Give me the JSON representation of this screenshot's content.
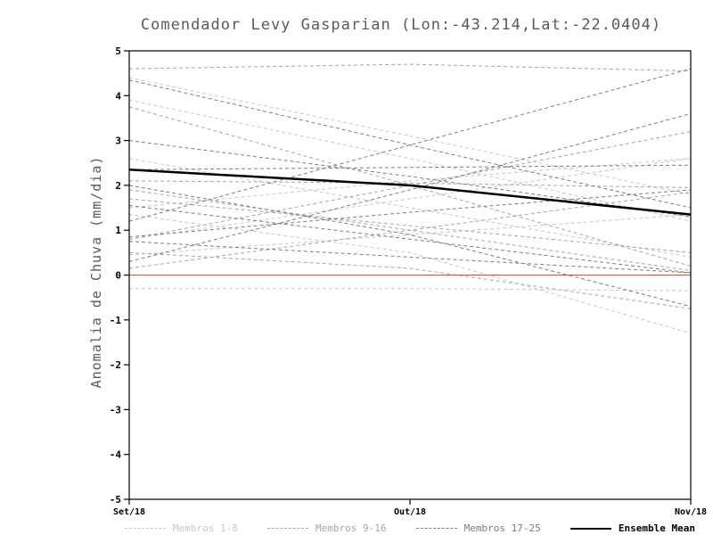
{
  "chart_data": {
    "type": "line",
    "title": "Comendador Levy Gasparian (Lon:-43.214,Lat:-22.0404)",
    "ylabel": "Anomalia de Chuva (mm/dia)",
    "x_categories": [
      "Set/18",
      "Out/18",
      "Nov/18"
    ],
    "ylim": [
      -5,
      5
    ],
    "yticks": [
      -5,
      -4,
      -3,
      -2,
      -1,
      0,
      1,
      2,
      3,
      4,
      5
    ],
    "grid": false,
    "zero_line": {
      "value": 0,
      "color": "#e04b3c"
    },
    "line_style": {
      "member_dash": "4,3",
      "member_width": 1,
      "mean_width": 2.5
    },
    "groups": [
      {
        "name": "Membros 1-8",
        "color": "#c9c9c9",
        "series": [
          [
            3.9,
            2.6,
            1.2
          ],
          [
            1.5,
            2.1,
            2.6
          ],
          [
            0.8,
            1.7,
            2.6
          ],
          [
            4.4,
            3.1,
            1.8
          ],
          [
            0.45,
            0.9,
            1.35
          ],
          [
            -0.3,
            -0.3,
            -0.35
          ],
          [
            2.6,
            1.5,
            0.4
          ],
          [
            1.35,
            0.5,
            -1.3
          ]
        ]
      },
      {
        "name": "Membros 9-16",
        "color": "#a6a6a6",
        "series": [
          [
            4.6,
            4.7,
            4.55
          ],
          [
            3.75,
            2.0,
            0.2
          ],
          [
            0.8,
            2.0,
            3.2
          ],
          [
            2.1,
            2.05,
            1.95
          ],
          [
            1.7,
            1.1,
            0.5
          ],
          [
            0.15,
            1.0,
            1.85
          ],
          [
            1.9,
            1.0,
            0.1
          ],
          [
            0.5,
            0.15,
            -0.75
          ]
        ]
      },
      {
        "name": "Membros 17-25",
        "color": "#7d7d7d",
        "series": [
          [
            3.0,
            2.2,
            1.3
          ],
          [
            0.3,
            1.9,
            3.6
          ],
          [
            2.35,
            2.4,
            2.45
          ],
          [
            1.55,
            0.8,
            0.05
          ],
          [
            0.75,
            0.4,
            0.05
          ],
          [
            4.35,
            2.9,
            1.5
          ],
          [
            0.85,
            1.4,
            1.9
          ],
          [
            2.0,
            0.9,
            -0.7
          ],
          [
            1.2,
            2.9,
            4.6
          ]
        ]
      }
    ],
    "ensemble_mean": {
      "name": "Ensemble Mean",
      "color": "#000000",
      "values": [
        2.35,
        2.0,
        1.35
      ]
    },
    "legend": [
      {
        "label": "Membros 1-8",
        "style": "dashed",
        "color": "#c9c9c9"
      },
      {
        "label": "Membros 9-16",
        "style": "dashed",
        "color": "#a6a6a6"
      },
      {
        "label": "Membros 17-25",
        "style": "dashed",
        "color": "#7d7d7d"
      },
      {
        "label": "Ensemble Mean",
        "style": "solid",
        "color": "#000000"
      }
    ]
  }
}
